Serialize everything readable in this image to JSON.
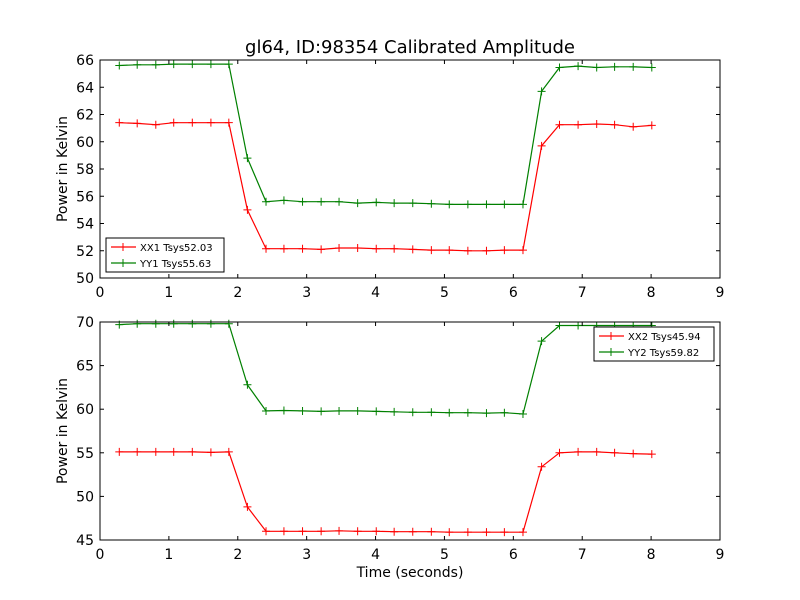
{
  "title": "gl64, ID:98354 Calibrated Amplitude",
  "colors": {
    "red": "#ff0000",
    "green": "#008000",
    "axes": "#000000"
  },
  "chart_data": [
    {
      "type": "line",
      "title": "gl64, ID:98354 Calibrated Amplitude",
      "xlabel": "",
      "ylabel": "Power in Kelvin",
      "xlim": [
        0,
        9
      ],
      "ylim": [
        50,
        66
      ],
      "xticks": [
        0,
        1,
        2,
        3,
        4,
        5,
        6,
        7,
        8,
        9
      ],
      "yticks": [
        50,
        52,
        54,
        56,
        58,
        60,
        62,
        64,
        66
      ],
      "grid": false,
      "legend_position": "lower-left",
      "x": [
        0.28,
        0.54,
        0.81,
        1.07,
        1.34,
        1.61,
        1.87,
        2.14,
        2.41,
        2.67,
        2.94,
        3.21,
        3.47,
        3.74,
        4.01,
        4.27,
        4.54,
        4.81,
        5.07,
        5.34,
        5.61,
        5.87,
        6.14,
        6.41,
        6.67,
        6.94,
        7.21,
        7.47,
        7.74,
        8.01
      ],
      "series": [
        {
          "name": "XX1 Tsys52.03",
          "color": "#ff0000",
          "values": [
            61.4,
            61.35,
            61.25,
            61.4,
            61.4,
            61.4,
            61.4,
            55.0,
            52.15,
            52.15,
            52.15,
            52.1,
            52.2,
            52.2,
            52.15,
            52.15,
            52.1,
            52.05,
            52.05,
            52.0,
            52.0,
            52.05,
            52.05,
            59.7,
            61.25,
            61.25,
            61.3,
            61.25,
            61.1,
            61.2
          ]
        },
        {
          "name": "YY1 Tsys55.63",
          "color": "#008000",
          "values": [
            65.6,
            65.65,
            65.65,
            65.7,
            65.7,
            65.7,
            65.7,
            58.8,
            55.6,
            55.7,
            55.6,
            55.6,
            55.6,
            55.5,
            55.55,
            55.5,
            55.5,
            55.45,
            55.4,
            55.4,
            55.4,
            55.4,
            55.4,
            63.7,
            65.45,
            65.55,
            65.45,
            65.5,
            65.5,
            65.45
          ]
        }
      ]
    },
    {
      "type": "line",
      "title": "",
      "xlabel": "Time (seconds)",
      "ylabel": "Power in Kelvin",
      "xlim": [
        0,
        9
      ],
      "ylim": [
        45,
        70
      ],
      "xticks": [
        0,
        1,
        2,
        3,
        4,
        5,
        6,
        7,
        8,
        9
      ],
      "yticks": [
        45,
        50,
        55,
        60,
        65,
        70
      ],
      "grid": false,
      "legend_position": "top-right",
      "x": [
        0.28,
        0.54,
        0.81,
        1.07,
        1.34,
        1.61,
        1.87,
        2.14,
        2.41,
        2.67,
        2.94,
        3.21,
        3.47,
        3.74,
        4.01,
        4.27,
        4.54,
        4.81,
        5.07,
        5.34,
        5.61,
        5.87,
        6.14,
        6.41,
        6.67,
        6.94,
        7.21,
        7.47,
        7.74,
        8.01
      ],
      "series": [
        {
          "name": "XX2 Tsys45.94",
          "color": "#ff0000",
          "values": [
            55.1,
            55.1,
            55.1,
            55.1,
            55.1,
            55.05,
            55.1,
            48.8,
            46.0,
            46.0,
            46.0,
            46.0,
            46.05,
            46.0,
            46.0,
            45.95,
            45.95,
            45.95,
            45.9,
            45.9,
            45.9,
            45.9,
            45.9,
            53.4,
            55.0,
            55.1,
            55.1,
            55.0,
            54.9,
            54.85
          ]
        },
        {
          "name": "YY2 Tsys59.82",
          "color": "#008000",
          "values": [
            69.7,
            69.8,
            69.8,
            69.8,
            69.8,
            69.8,
            69.8,
            62.8,
            59.8,
            59.85,
            59.8,
            59.75,
            59.8,
            59.8,
            59.75,
            59.7,
            59.65,
            59.65,
            59.6,
            59.6,
            59.55,
            59.6,
            59.45,
            67.8,
            69.6,
            69.6,
            69.6,
            69.6,
            69.6,
            69.6
          ]
        }
      ]
    }
  ]
}
